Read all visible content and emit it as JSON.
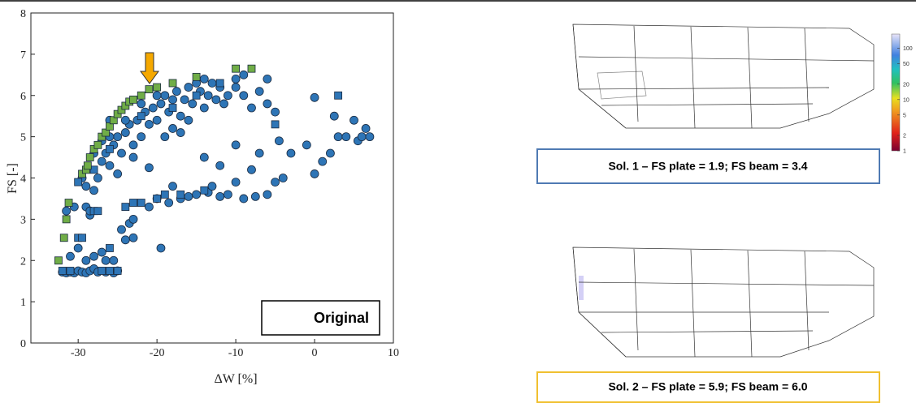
{
  "chart_data": {
    "type": "scatter",
    "xlabel": "ΔW [%]",
    "ylabel": "FS [-]",
    "xlim": [
      -36,
      10
    ],
    "ylim": [
      0,
      8
    ],
    "xticks": [
      -30,
      -20,
      -10,
      0,
      10
    ],
    "yticks": [
      0,
      1,
      2,
      3,
      4,
      5,
      6,
      7,
      8
    ],
    "grid": false,
    "annotation": "Original",
    "series": [
      {
        "marker": "circle",
        "color": "#2e75b6",
        "x": [
          -32,
          -31.5,
          -31,
          -30.5,
          -30,
          -29.5,
          -29,
          -28.5,
          -28,
          -27.5,
          -26.5,
          -25.5,
          -25,
          -31,
          -30,
          -29,
          -28,
          -27,
          -26.5,
          -25.5,
          -19.5,
          -24,
          -23,
          -31.5,
          -30.5,
          -29,
          -28.5,
          -24.5,
          -23.5,
          -23,
          -21,
          -20,
          -18.5,
          -17,
          -16,
          -15,
          -13.5,
          -13,
          -12,
          -10,
          -9,
          -7.5,
          -6,
          -5,
          -4,
          -18,
          -21,
          -11,
          -29.5,
          -29,
          -28,
          -27.5,
          -27,
          -26.5,
          -26,
          -25.5,
          -25,
          -24.5,
          -24,
          -23.5,
          -23,
          -22.5,
          -22,
          -21.5,
          -21,
          -20.5,
          -20,
          -19.5,
          -19,
          -18.5,
          -18,
          -17.5,
          -17,
          -16.5,
          -16,
          -15.5,
          -15,
          -14.5,
          -14,
          -13.5,
          -13,
          -12.5,
          -12,
          -11.5,
          -11,
          -10,
          -10,
          -9,
          -8,
          -7,
          -6,
          -5,
          -4.5,
          -7,
          -8,
          -10,
          -12,
          -14,
          -3,
          -1,
          0,
          1,
          2,
          3,
          4,
          5,
          5.5,
          6,
          6.5,
          7,
          2.5,
          0,
          -20,
          -22,
          -24,
          -26,
          -27,
          -28,
          -18,
          -16,
          -14,
          -9,
          -6,
          -26,
          -28.5,
          -25,
          -23,
          -19,
          -17
        ],
        "values": [
          1.72,
          1.7,
          1.72,
          1.7,
          1.75,
          1.72,
          1.7,
          1.75,
          1.8,
          1.72,
          1.72,
          1.7,
          1.75,
          2.1,
          2.3,
          2,
          2.1,
          2.2,
          2,
          2,
          2.3,
          2.5,
          2.55,
          3.2,
          3.3,
          3.3,
          3.1,
          2.75,
          2.9,
          3,
          3.3,
          3.5,
          3.4,
          3.5,
          3.55,
          3.6,
          3.65,
          3.8,
          3.55,
          3.9,
          3.5,
          3.55,
          3.6,
          3.9,
          4,
          3.8,
          4.25,
          3.6,
          4,
          3.8,
          3.7,
          4,
          4.4,
          4.6,
          4.3,
          4.8,
          5,
          4.6,
          5.1,
          5.3,
          4.8,
          5.4,
          5,
          5.6,
          5.3,
          5.7,
          5.4,
          5.8,
          6,
          5.6,
          5.9,
          6.1,
          5.5,
          5.9,
          6.2,
          5.8,
          6.3,
          6.1,
          6.4,
          6,
          6.3,
          5.9,
          6.2,
          5.8,
          6,
          6.4,
          6.2,
          6,
          5.7,
          6.1,
          5.8,
          5.6,
          4.9,
          4.6,
          4.2,
          4.8,
          4.3,
          4.5,
          4.6,
          4.8,
          4.1,
          4.4,
          4.6,
          5,
          5,
          5.4,
          4.9,
          5,
          5.2,
          5,
          5.5,
          5.95,
          6,
          5.8,
          5.4,
          5,
          4.9,
          4.6,
          5.2,
          5.4,
          5.7,
          6.5,
          6.4,
          5.4,
          3.2,
          4.1,
          4.5,
          5,
          5.1
        ]
      },
      {
        "marker": "square",
        "color": "#2e75b6",
        "x": [
          -32,
          -31,
          -30,
          -29.5,
          -28,
          -27.5,
          -26,
          -24,
          -23,
          -22,
          -20,
          -19,
          -17,
          -14,
          -27,
          -26,
          -25,
          -5,
          3,
          -30,
          -28,
          -26,
          -22,
          -18,
          -15,
          -12
        ],
        "values": [
          1.75,
          1.75,
          2.55,
          2.55,
          3.2,
          3.2,
          2.3,
          3.3,
          3.4,
          3.4,
          3.5,
          3.6,
          3.6,
          3.7,
          1.75,
          1.75,
          1.75,
          5.3,
          6,
          3.9,
          4.2,
          4.7,
          5.5,
          5.7,
          6,
          6.3
        ]
      },
      {
        "marker": "square",
        "color": "#70ad47",
        "x": [
          -32.5,
          -31.8,
          -31.5,
          -31.2,
          -29.5,
          -29,
          -28.8,
          -28.5,
          -28,
          -27.5,
          -27,
          -26.5,
          -26,
          -25.5,
          -25,
          -24.5,
          -24,
          -23.5,
          -23,
          -22,
          -21,
          -20,
          -18,
          -15,
          -10,
          -8
        ],
        "values": [
          2,
          2.55,
          3,
          3.4,
          4.1,
          4.2,
          4.3,
          4.5,
          4.7,
          4.8,
          5,
          5.1,
          5.25,
          5.4,
          5.55,
          5.65,
          5.75,
          5.85,
          5.9,
          6,
          6.15,
          6.2,
          6.3,
          6.45,
          6.65,
          6.65
        ]
      }
    ]
  },
  "figures": [
    {
      "caption": "Sol. 1 – FS plate = 1.9; FS beam = 3.4"
    },
    {
      "caption": "Sol. 2 – FS plate = 5.9; FS beam = 6.0"
    }
  ],
  "colorbar": {
    "scale": "log",
    "lim": [
      1,
      190
    ],
    "ticks": [
      1,
      2,
      5,
      10,
      20,
      50,
      100
    ]
  }
}
